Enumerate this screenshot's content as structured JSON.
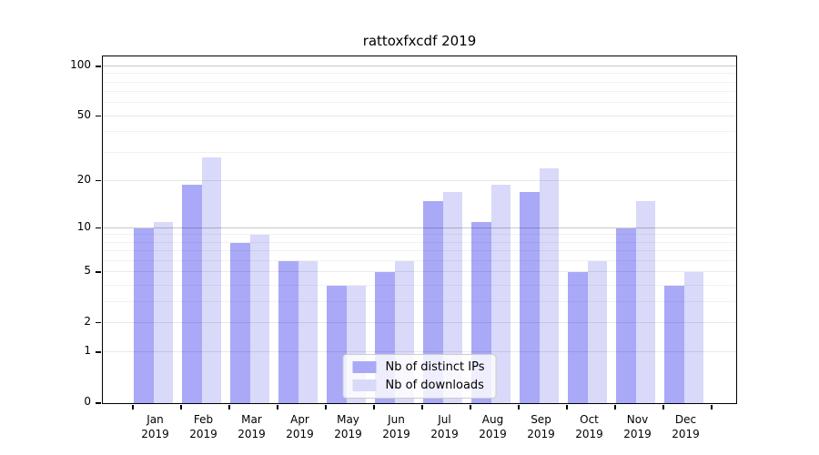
{
  "chart_data": {
    "type": "bar",
    "title": "rattoxfxcdf 2019",
    "categories": [
      "Jan",
      "Feb",
      "Mar",
      "Apr",
      "May",
      "Jun",
      "Jul",
      "Aug",
      "Sep",
      "Oct",
      "Nov",
      "Dec"
    ],
    "year_label": "2019",
    "series": [
      {
        "name": "Nb of distinct IPs",
        "color": "#a9a9f8",
        "values": [
          10,
          19,
          8,
          6,
          4,
          5,
          15,
          11,
          17,
          5,
          10,
          4
        ]
      },
      {
        "name": "Nb of downloads",
        "color": "#d9d9f9",
        "values": [
          11,
          28,
          9,
          6,
          4,
          6,
          17,
          19,
          24,
          6,
          15,
          5
        ]
      }
    ],
    "yscale": "log1p",
    "yticks": [
      100,
      50,
      20,
      10,
      5,
      2,
      1,
      0
    ],
    "ylim": [
      0,
      112
    ],
    "grid": true,
    "legend_position": "lower center"
  }
}
